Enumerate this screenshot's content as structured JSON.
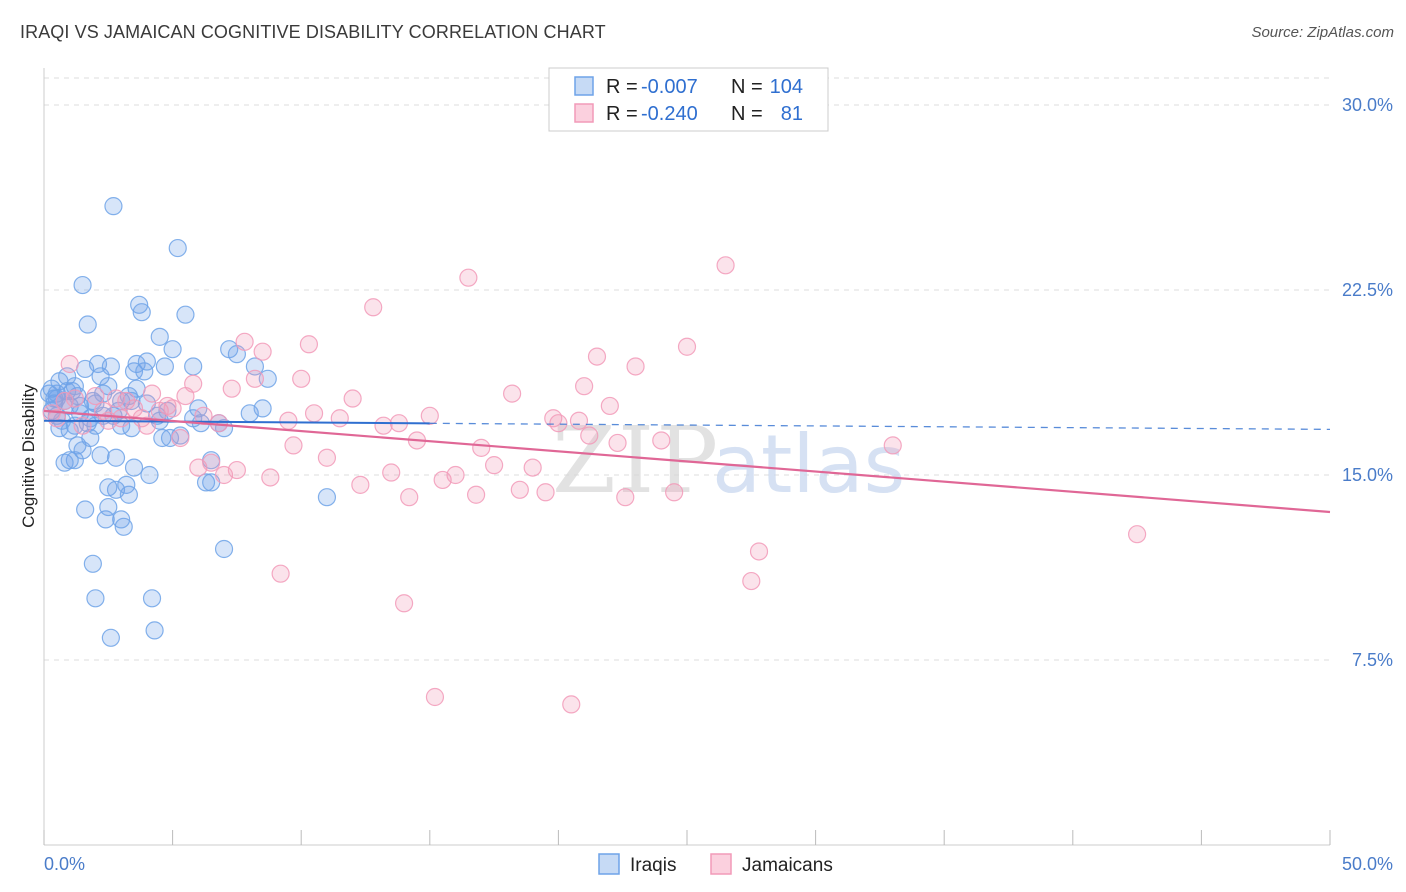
{
  "title": "IRAQI VS JAMAICAN COGNITIVE DISABILITY CORRELATION CHART",
  "source": "Source: ZipAtlas.com",
  "watermark": {
    "zip": "ZIP",
    "atlas": "atlas"
  },
  "colors": {
    "iraqi": "#6fa3e8",
    "iraqi_line": "#2f6fd0",
    "jamaican": "#f29ab8",
    "jamaican_line": "#e06796",
    "axis_label": "#4a7cc9",
    "grid": "#dddddd"
  },
  "legend": {
    "r_label": "R =",
    "n_label": "N =",
    "entries": [
      {
        "r": "-0.007",
        "n": "104"
      },
      {
        "r": "-0.240",
        "n": "81"
      }
    ]
  },
  "chart_data": {
    "type": "scatter",
    "ylabel": "Cognitive Disability",
    "xlabel": "",
    "xlim": [
      0,
      50
    ],
    "ylim": [
      0,
      31.5
    ],
    "x_ticks_labeled": [
      {
        "value": 0,
        "label": "0.0%"
      },
      {
        "value": 50,
        "label": "50.0%"
      }
    ],
    "x_ticks_minor": [
      5,
      10,
      15,
      20,
      25,
      30,
      35,
      40,
      45
    ],
    "y_ticks": [
      {
        "value": 7.5,
        "label": "7.5%"
      },
      {
        "value": 15.0,
        "label": "15.0%"
      },
      {
        "value": 22.5,
        "label": "22.5%"
      },
      {
        "value": 30.0,
        "label": "30.0%"
      }
    ],
    "series": [
      {
        "name": "Iraqis",
        "trend": {
          "x0": 0,
          "y0": 17.2,
          "x1": 50,
          "y1": 16.85,
          "solid_until": 15
        },
        "points": [
          [
            0.2,
            18.3
          ],
          [
            0.3,
            17.6
          ],
          [
            0.3,
            18.5
          ],
          [
            0.4,
            17.9
          ],
          [
            0.5,
            18.1
          ],
          [
            0.5,
            17.4
          ],
          [
            0.6,
            16.9
          ],
          [
            0.6,
            18.8
          ],
          [
            0.7,
            17.2
          ],
          [
            0.8,
            18.0
          ],
          [
            0.8,
            15.5
          ],
          [
            0.9,
            19.0
          ],
          [
            1.0,
            17.8
          ],
          [
            1.0,
            16.8
          ],
          [
            1.1,
            18.4
          ],
          [
            1.2,
            17.0
          ],
          [
            1.2,
            15.6
          ],
          [
            1.3,
            16.2
          ],
          [
            1.3,
            18.2
          ],
          [
            1.4,
            17.5
          ],
          [
            1.5,
            22.7
          ],
          [
            1.5,
            16.0
          ],
          [
            1.6,
            19.3
          ],
          [
            1.6,
            13.6
          ],
          [
            1.7,
            21.1
          ],
          [
            1.7,
            17.1
          ],
          [
            1.8,
            16.5
          ],
          [
            1.9,
            18.0
          ],
          [
            1.9,
            11.4
          ],
          [
            2.0,
            10.0
          ],
          [
            2.0,
            17.9
          ],
          [
            2.1,
            19.5
          ],
          [
            2.2,
            19.0
          ],
          [
            2.2,
            15.8
          ],
          [
            2.3,
            17.4
          ],
          [
            2.4,
            13.2
          ],
          [
            2.5,
            18.6
          ],
          [
            2.5,
            13.7
          ],
          [
            2.6,
            8.4
          ],
          [
            2.6,
            19.4
          ],
          [
            2.7,
            17.4
          ],
          [
            2.7,
            25.9
          ],
          [
            2.8,
            14.4
          ],
          [
            2.8,
            15.7
          ],
          [
            2.9,
            17.6
          ],
          [
            3.0,
            18.0
          ],
          [
            3.0,
            17.0
          ],
          [
            3.1,
            12.9
          ],
          [
            3.2,
            14.6
          ],
          [
            3.3,
            18.2
          ],
          [
            3.3,
            14.2
          ],
          [
            3.4,
            16.9
          ],
          [
            3.5,
            19.2
          ],
          [
            3.5,
            15.3
          ],
          [
            3.6,
            18.5
          ],
          [
            3.6,
            19.5
          ],
          [
            3.7,
            21.9
          ],
          [
            3.8,
            21.6
          ],
          [
            3.9,
            19.2
          ],
          [
            4.0,
            19.6
          ],
          [
            4.0,
            17.9
          ],
          [
            4.1,
            15.0
          ],
          [
            4.2,
            10.0
          ],
          [
            4.3,
            8.7
          ],
          [
            4.4,
            17.4
          ],
          [
            4.5,
            20.6
          ],
          [
            4.5,
            17.2
          ],
          [
            4.6,
            16.5
          ],
          [
            4.7,
            19.4
          ],
          [
            4.8,
            17.6
          ],
          [
            5.0,
            20.1
          ],
          [
            5.2,
            24.2
          ],
          [
            5.3,
            16.6
          ],
          [
            5.5,
            21.5
          ],
          [
            5.8,
            17.3
          ],
          [
            5.8,
            19.4
          ],
          [
            6.0,
            17.7
          ],
          [
            6.1,
            17.1
          ],
          [
            6.3,
            14.7
          ],
          [
            6.5,
            15.6
          ],
          [
            6.5,
            14.7
          ],
          [
            6.8,
            17.1
          ],
          [
            7.0,
            12.0
          ],
          [
            7.0,
            16.9
          ],
          [
            7.2,
            20.1
          ],
          [
            7.5,
            19.9
          ],
          [
            8.0,
            17.5
          ],
          [
            8.2,
            19.4
          ],
          [
            8.5,
            17.7
          ],
          [
            8.7,
            18.9
          ],
          [
            11.0,
            14.1
          ],
          [
            0.5,
            18.3
          ],
          [
            1.2,
            18.6
          ],
          [
            0.4,
            18.1
          ],
          [
            2.0,
            17.0
          ],
          [
            1.0,
            15.6
          ],
          [
            3.0,
            13.2
          ],
          [
            2.5,
            14.5
          ],
          [
            1.8,
            17.3
          ],
          [
            4.9,
            16.5
          ],
          [
            0.9,
            18.4
          ],
          [
            3.4,
            18.0
          ],
          [
            2.3,
            18.3
          ],
          [
            1.4,
            17.8
          ]
        ]
      },
      {
        "name": "Jamaicans",
        "trend": {
          "x0": 0,
          "y0": 17.6,
          "x1": 50,
          "y1": 13.5
        },
        "points": [
          [
            0.3,
            17.5
          ],
          [
            0.5,
            17.3
          ],
          [
            0.8,
            18.0
          ],
          [
            1.0,
            19.5
          ],
          [
            1.2,
            18.1
          ],
          [
            1.5,
            17.0
          ],
          [
            2.0,
            18.2
          ],
          [
            2.3,
            17.6
          ],
          [
            2.5,
            17.2
          ],
          [
            2.8,
            18.1
          ],
          [
            3.0,
            17.3
          ],
          [
            3.2,
            18.0
          ],
          [
            3.5,
            17.7
          ],
          [
            3.8,
            17.3
          ],
          [
            4.0,
            17.0
          ],
          [
            4.2,
            18.3
          ],
          [
            4.5,
            17.6
          ],
          [
            4.8,
            17.8
          ],
          [
            5.0,
            17.7
          ],
          [
            5.3,
            16.5
          ],
          [
            5.5,
            18.2
          ],
          [
            5.8,
            18.7
          ],
          [
            6.0,
            15.3
          ],
          [
            6.2,
            17.4
          ],
          [
            6.5,
            15.5
          ],
          [
            6.8,
            17.1
          ],
          [
            7.0,
            15.0
          ],
          [
            7.3,
            18.5
          ],
          [
            7.5,
            15.2
          ],
          [
            7.8,
            20.4
          ],
          [
            8.2,
            18.9
          ],
          [
            8.5,
            20.0
          ],
          [
            8.8,
            14.9
          ],
          [
            9.2,
            11.0
          ],
          [
            9.5,
            17.2
          ],
          [
            9.7,
            16.2
          ],
          [
            10.0,
            18.9
          ],
          [
            10.3,
            20.3
          ],
          [
            10.5,
            17.5
          ],
          [
            11.0,
            15.7
          ],
          [
            11.5,
            17.3
          ],
          [
            12.0,
            18.1
          ],
          [
            12.3,
            14.6
          ],
          [
            12.8,
            21.8
          ],
          [
            13.2,
            17.0
          ],
          [
            13.5,
            15.1
          ],
          [
            13.8,
            17.1
          ],
          [
            14.0,
            9.8
          ],
          [
            14.2,
            14.1
          ],
          [
            14.5,
            16.4
          ],
          [
            15.0,
            17.4
          ],
          [
            15.2,
            6.0
          ],
          [
            15.5,
            14.8
          ],
          [
            16.0,
            15.0
          ],
          [
            16.5,
            23.0
          ],
          [
            16.8,
            14.2
          ],
          [
            17.0,
            16.1
          ],
          [
            17.5,
            15.4
          ],
          [
            18.2,
            18.3
          ],
          [
            18.5,
            14.4
          ],
          [
            19.0,
            15.3
          ],
          [
            19.5,
            14.3
          ],
          [
            19.8,
            17.3
          ],
          [
            20.0,
            17.1
          ],
          [
            20.5,
            5.7
          ],
          [
            20.8,
            17.2
          ],
          [
            21.0,
            18.6
          ],
          [
            21.2,
            16.6
          ],
          [
            21.5,
            19.8
          ],
          [
            22.0,
            17.8
          ],
          [
            22.3,
            16.3
          ],
          [
            22.6,
            14.1
          ],
          [
            23.0,
            19.4
          ],
          [
            24.0,
            16.4
          ],
          [
            24.5,
            14.3
          ],
          [
            25.0,
            20.2
          ],
          [
            26.5,
            23.5
          ],
          [
            27.5,
            10.7
          ],
          [
            27.8,
            11.9
          ],
          [
            33.0,
            16.2
          ],
          [
            42.5,
            12.6
          ]
        ]
      }
    ]
  },
  "bottom_legend": [
    {
      "label": "Iraqis"
    },
    {
      "label": "Jamaicans"
    }
  ]
}
